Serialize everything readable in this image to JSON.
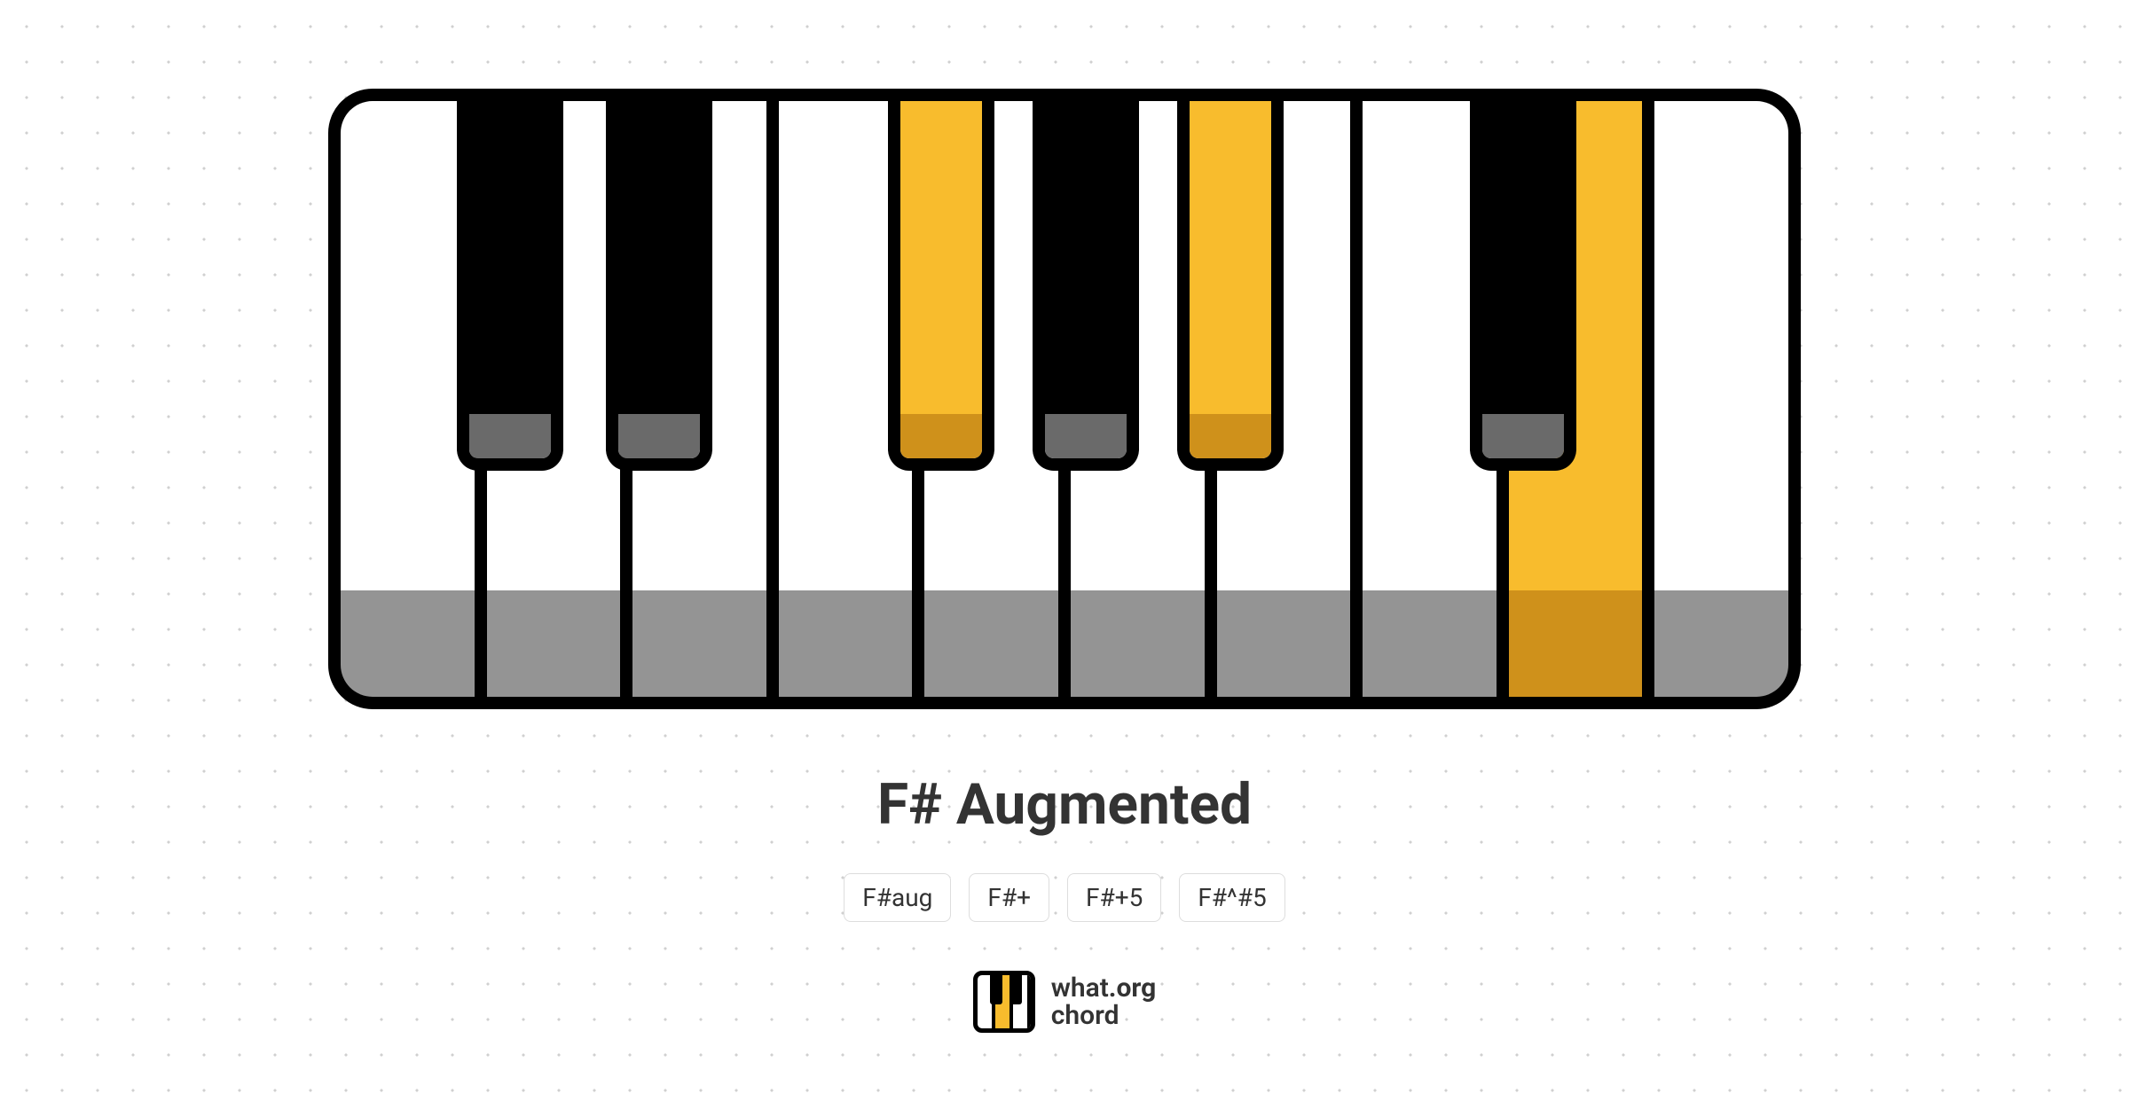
{
  "chord": {
    "title": "F# Augmented",
    "aliases": [
      "F#aug",
      "F#+",
      "F#+5",
      "F#^#5"
    ]
  },
  "colors": {
    "highlight_upper": "#f8bc2d",
    "highlight_lower": "#cf911b",
    "white_upper": "#ffffff",
    "white_lower": "#949494",
    "black_upper": "#000000",
    "black_lower": "#6a6a6a",
    "border": "#000000",
    "text": "#333333",
    "alias_border": "#dddddd",
    "background": "#ffffff",
    "dot": "#d0d0d0"
  },
  "keyboard": {
    "white_keys": [
      {
        "note": "C",
        "highlight": false
      },
      {
        "note": "D",
        "highlight": false
      },
      {
        "note": "E",
        "highlight": false
      },
      {
        "note": "F",
        "highlight": false
      },
      {
        "note": "G",
        "highlight": false
      },
      {
        "note": "A",
        "highlight": false
      },
      {
        "note": "B",
        "highlight": false
      },
      {
        "note": "C2",
        "highlight": false
      },
      {
        "note": "D2",
        "highlight": true
      },
      {
        "note": "E2",
        "highlight": false
      }
    ],
    "black_keys": [
      {
        "note": "C#",
        "position_pct": 8.0,
        "highlight": false
      },
      {
        "note": "D#",
        "position_pct": 18.3,
        "highlight": false
      },
      {
        "note": "F#",
        "position_pct": 37.8,
        "highlight": true
      },
      {
        "note": "G#",
        "position_pct": 47.8,
        "highlight": false
      },
      {
        "note": "A#",
        "position_pct": 57.8,
        "highlight": true
      },
      {
        "note": "C#2",
        "position_pct": 78.0,
        "highlight": false
      }
    ]
  },
  "logo": {
    "line1_a": "what",
    "line1_b": ".org",
    "line2": "chord"
  }
}
